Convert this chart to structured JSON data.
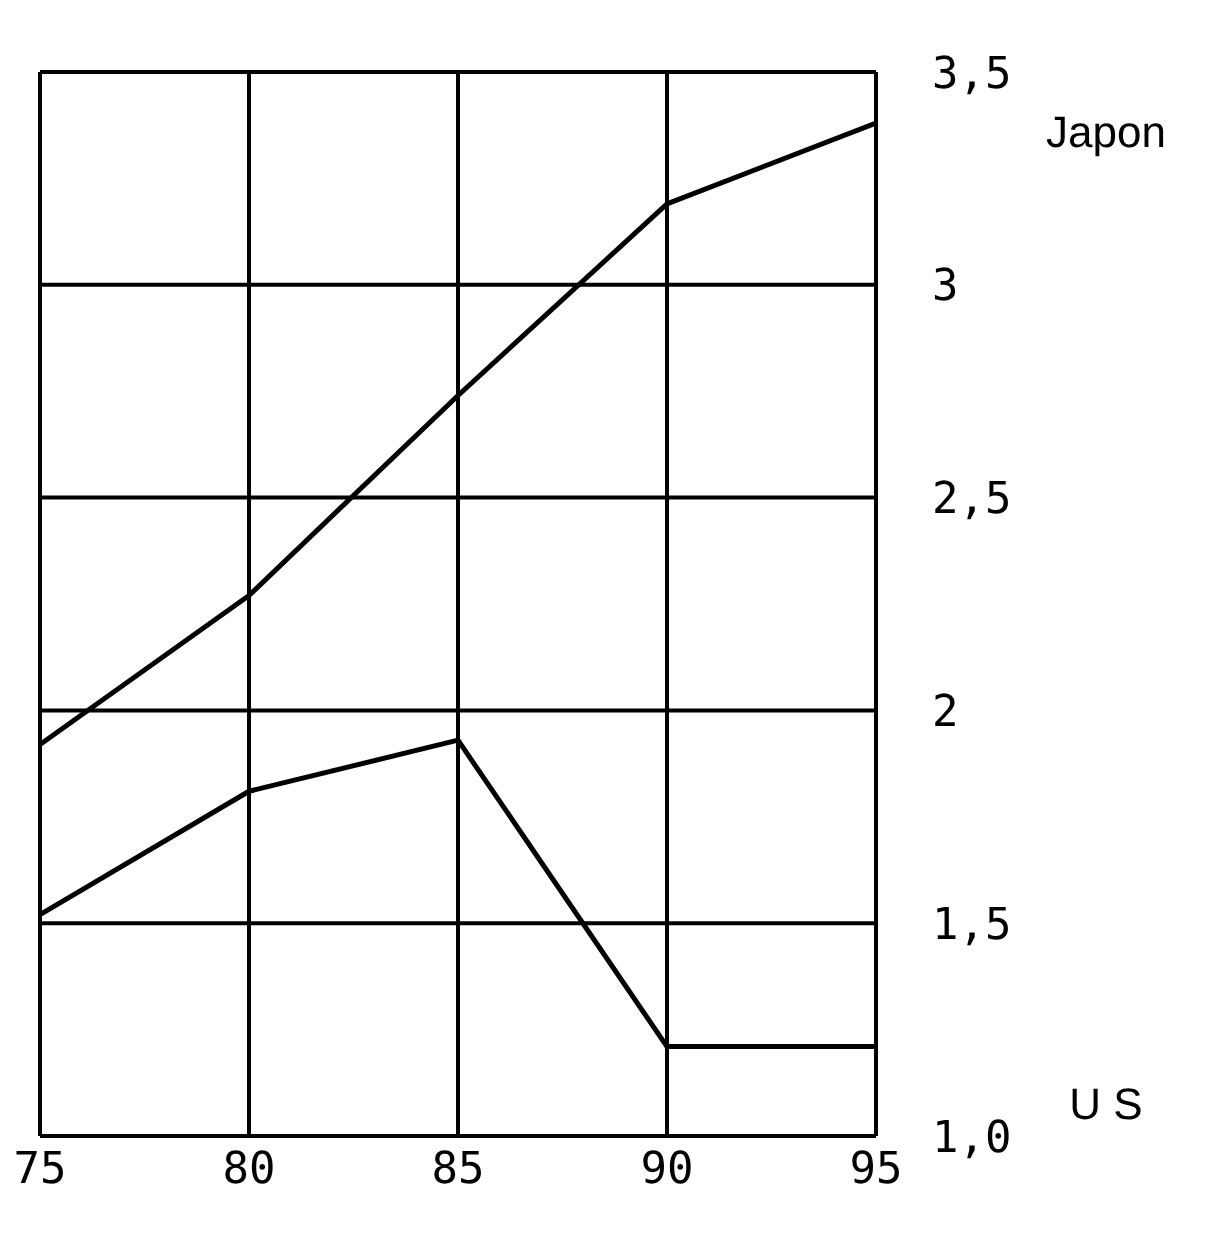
{
  "chart_data": {
    "type": "line",
    "x": [
      75,
      80,
      85,
      90,
      95
    ],
    "series": [
      {
        "name": "Japon",
        "color": "#000000",
        "values": [
          1.92,
          2.27,
          2.74,
          3.19,
          3.38
        ]
      },
      {
        "name": "U S",
        "color": "#000000",
        "values": [
          1.52,
          1.81,
          1.93,
          1.21,
          1.21
        ]
      }
    ],
    "xlim": [
      75,
      95
    ],
    "xticks": [
      75,
      80,
      85,
      90,
      95
    ],
    "ylim": [
      1.0,
      3.5
    ],
    "yticks": [
      {
        "value": 1.0,
        "label": "1,0"
      },
      {
        "value": 1.5,
        "label": "1,5"
      },
      {
        "value": 2,
        "label": "2"
      },
      {
        "value": 2.5,
        "label": "2,5"
      },
      {
        "value": 3,
        "label": "3"
      },
      {
        "value": 3.5,
        "label": "3,5"
      }
    ],
    "grid": true,
    "legend": false,
    "marker": "none",
    "line_style": "solid"
  }
}
